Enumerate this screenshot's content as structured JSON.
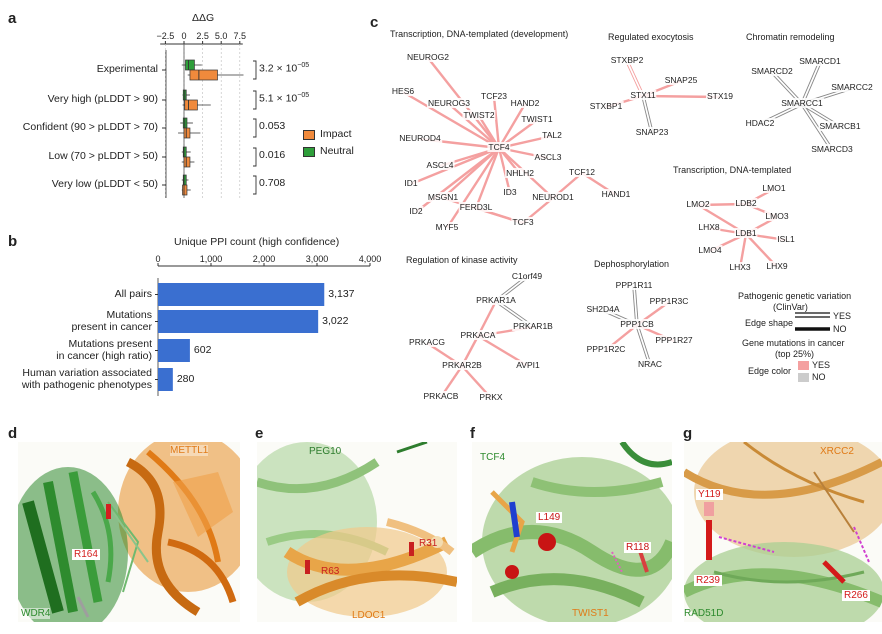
{
  "panels": {
    "a": "a",
    "b": "b",
    "c": "c",
    "d": "d",
    "e": "e",
    "f": "f",
    "g": "g"
  },
  "panel_a": {
    "axis_title": "ΔΔG",
    "ticks": [
      "−2.5",
      "0",
      "2.5",
      "5.0",
      "7.5"
    ],
    "rows": [
      {
        "label": "Experimental",
        "pvalue": "3.2 × 10",
        "exp": "−05"
      },
      {
        "label": "Very high (pLDDT > 90)",
        "pvalue": "5.1 × 10",
        "exp": "−05"
      },
      {
        "label": "Confident (90 > pLDDT > 70)",
        "pvalue": "0.053",
        "exp": ""
      },
      {
        "label": "Low (70 > pLDDT > 50)",
        "pvalue": "0.016",
        "exp": ""
      },
      {
        "label": "Very low (pLDDT < 50)",
        "pvalue": "0.708",
        "exp": ""
      }
    ],
    "legend": [
      {
        "label": "Impact",
        "color": "#f08a3c"
      },
      {
        "label": "Neutral",
        "color": "#2e9e3a"
      }
    ]
  },
  "chart_data": {
    "type": "bar",
    "title": "Unique PPI count (high confidence)",
    "categories": [
      "All pairs",
      "Mutations present in cancer",
      "Mutations present in cancer (high ratio)",
      "Human variation associated with pathogenic phenotypes"
    ],
    "category_lines": [
      [
        "All pairs"
      ],
      [
        "Mutations",
        "present in cancer"
      ],
      [
        "Mutations present",
        "in cancer (high ratio)"
      ],
      [
        "Human variation associated",
        "with pathogenic phenotypes"
      ]
    ],
    "values": [
      3137,
      3022,
      602,
      280
    ],
    "value_labels": [
      "3,137",
      "3,022",
      "602",
      "280"
    ],
    "ticks": [
      "0",
      "1,000",
      "2,000",
      "3,000",
      "4,000"
    ],
    "xlim": [
      0,
      4000
    ],
    "bar_color": "#3a6fd0"
  },
  "panel_c": {
    "clusters": [
      "Transcription, DNA-templated (development)",
      "Regulated exocytosis",
      "Chromatin remodeling",
      "Transcription, DNA-templated",
      "Regulation of kinase activity",
      "Dephosphorylation"
    ],
    "legend_title1": "Pathogenic genetic variation",
    "legend_title1b": "(ClinVar)",
    "edge_shape": "Edge shape",
    "yes": "YES",
    "no": "NO",
    "legend_title2": "Gene mutations in cancer",
    "legend_title2b": "(top 25%)",
    "edge_color": "Edge color",
    "yes_color": "#f4a0a0",
    "no_color": "#cccccc"
  },
  "panel_d": {
    "protein1": "METTL1",
    "protein2": "WDR4",
    "residue": "R164"
  },
  "panel_e": {
    "protein1": "PEG10",
    "protein2": "LDOC1",
    "residue1": "R63",
    "residue2": "R31"
  },
  "panel_f": {
    "protein1": "TCF4",
    "protein2": "TWIST1",
    "residue1": "L149",
    "residue2": "R118"
  },
  "panel_g": {
    "protein1": "XRCC2",
    "protein2": "RAD51D",
    "residue1": "Y119",
    "residue2": "R239",
    "residue3": "R266"
  }
}
